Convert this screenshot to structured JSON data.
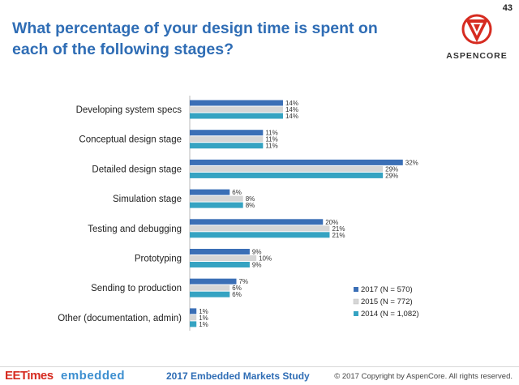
{
  "slide": {
    "title": "What percentage of your design time is spent on each of the following stages?",
    "page_number": "43",
    "logo_text": "ASPENCORE"
  },
  "footer": {
    "brand_1": "EETimes",
    "brand_2": "embedded",
    "study": "2017 Embedded Markets Study",
    "copyright": "© 2017 Copyright by AspenCore. All rights reserved."
  },
  "colors": {
    "title": "#2f6db5",
    "series": [
      "#3b6fb6",
      "#d6d6d6",
      "#35a3c2"
    ],
    "brand_red": "#d62b20"
  },
  "chart_data": {
    "type": "bar",
    "orientation": "horizontal",
    "categories": [
      "Developing system specs",
      "Conceptual design stage",
      "Detailed design stage",
      "Simulation stage",
      "Testing and debugging",
      "Prototyping",
      "Sending to production",
      "Other (documentation, admin)"
    ],
    "series": [
      {
        "name": "2017 (N = 570)",
        "values": [
          14,
          11,
          32,
          6,
          20,
          9,
          7,
          1
        ]
      },
      {
        "name": "2015 (N = 772)",
        "values": [
          14,
          11,
          29,
          8,
          21,
          10,
          6,
          1
        ]
      },
      {
        "name": "2014 (N = 1,082)",
        "values": [
          14,
          11,
          29,
          8,
          21,
          9,
          6,
          1
        ]
      }
    ],
    "value_suffix": "%",
    "xlim": [
      0,
      33
    ],
    "legend_position": "bottom-right",
    "grid": false
  }
}
